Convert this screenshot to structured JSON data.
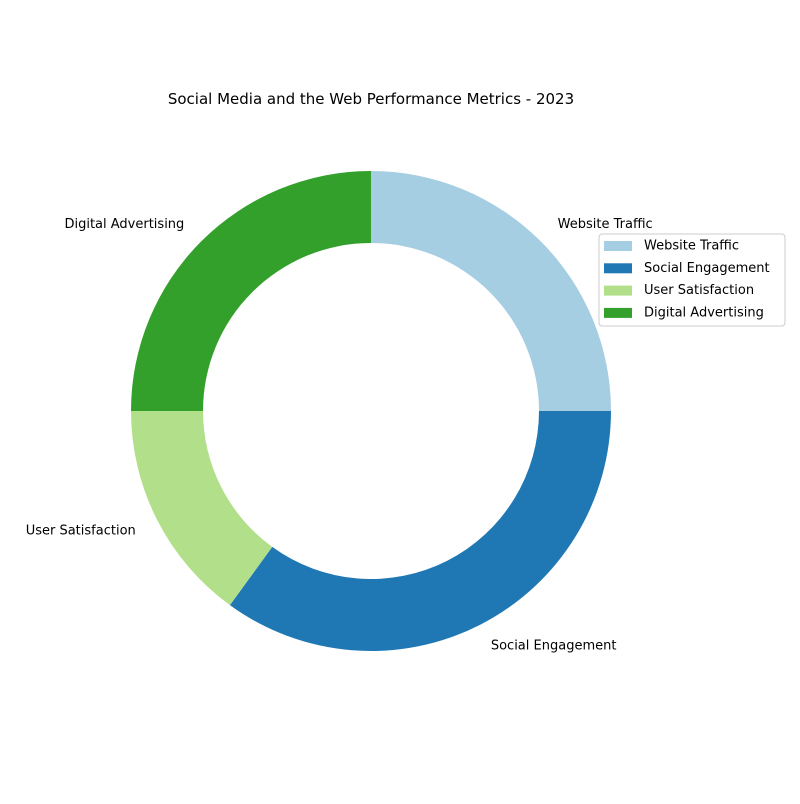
{
  "chart_data": {
    "type": "pie",
    "variant": "donut",
    "title": "Social Media and the Web Performance Metrics - 2023",
    "categories": [
      "Website Traffic",
      "Social Engagement",
      "User Satisfaction",
      "Digital Advertising"
    ],
    "values": [
      25,
      35,
      15,
      25
    ],
    "colors": [
      "#a6cee3",
      "#1f78b4",
      "#b2df8a",
      "#33a02c"
    ],
    "start_angle_deg": 90,
    "direction": "clockwise",
    "legend": {
      "position": "right",
      "entries": [
        "Website Traffic",
        "Social Engagement",
        "User Satisfaction",
        "Digital Advertising"
      ]
    }
  }
}
